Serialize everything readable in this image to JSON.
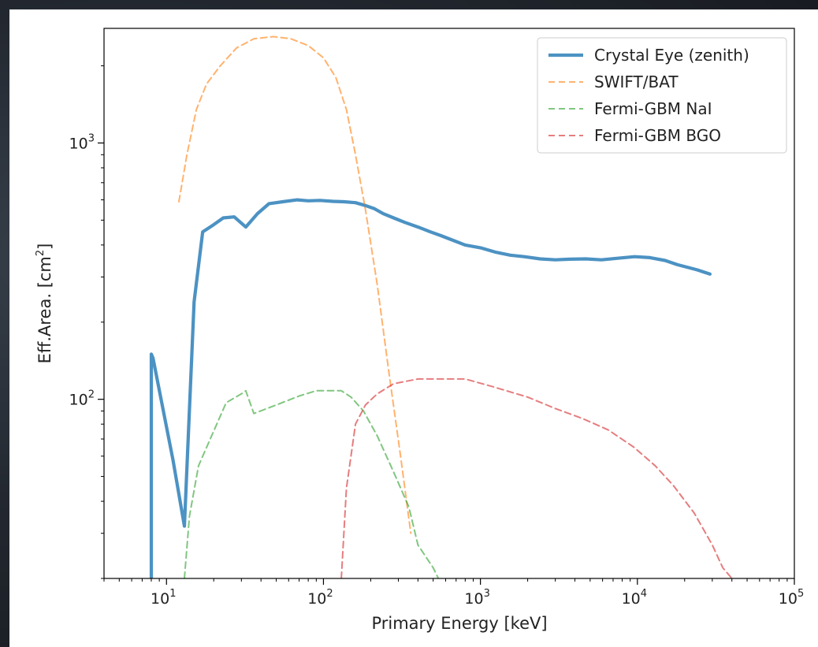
{
  "chart_data": {
    "type": "line",
    "xlabel": "Primary Energy [keV]",
    "ylabel_prefix": "Eff.Area. [cm",
    "ylabel_exp": "2",
    "ylabel_suffix": "]",
    "xscale": "log",
    "yscale": "log",
    "xlim": [
      4,
      100000
    ],
    "ylim": [
      20,
      2800
    ],
    "grid": false,
    "legend_position": "top-right",
    "x_ticks": [
      {
        "base": "10",
        "exp": "1",
        "value": 10
      },
      {
        "base": "10",
        "exp": "2",
        "value": 100
      },
      {
        "base": "10",
        "exp": "3",
        "value": 1000
      },
      {
        "base": "10",
        "exp": "4",
        "value": 10000
      },
      {
        "base": "10",
        "exp": "5",
        "value": 100000
      }
    ],
    "y_ticks": [
      {
        "base": "10",
        "exp": "2",
        "value": 100
      },
      {
        "base": "10",
        "exp": "3",
        "value": 1000
      }
    ],
    "series": [
      {
        "name": "Crystal Eye (zenith)",
        "color": "#1f77b4",
        "style": "solid",
        "x": [
          8,
          8,
          8.2,
          11,
          13,
          15,
          17,
          20,
          23,
          27,
          32,
          38,
          45,
          55,
          68,
          80,
          95,
          115,
          135,
          160,
          185,
          210,
          240,
          280,
          330,
          400,
          480,
          560,
          650,
          800,
          1000,
          1250,
          1550,
          1900,
          2400,
          3000,
          3700,
          4700,
          5900,
          7500,
          9600,
          12000,
          15000,
          18000,
          24000,
          29000
        ],
        "y": [
          20,
          150,
          145,
          58,
          32,
          240,
          450,
          480,
          510,
          515,
          470,
          530,
          580,
          590,
          600,
          595,
          597,
          592,
          590,
          585,
          570,
          555,
          530,
          510,
          490,
          470,
          450,
          435,
          420,
          400,
          390,
          375,
          365,
          360,
          353,
          350,
          352,
          353,
          350,
          355,
          360,
          357,
          348,
          335,
          320,
          308
        ]
      },
      {
        "name": "SWIFT/BAT",
        "color": "#ff7f0e",
        "style": "dashed",
        "x": [
          12,
          13.5,
          15.5,
          18,
          22,
          28,
          36,
          48,
          62,
          80,
          100,
          120,
          140,
          160,
          185,
          220,
          260,
          310,
          360
        ],
        "y": [
          590,
          900,
          1350,
          1700,
          2000,
          2350,
          2550,
          2600,
          2550,
          2400,
          2150,
          1800,
          1350,
          900,
          550,
          280,
          130,
          60,
          30
        ]
      },
      {
        "name": "Fermi-GBM NaI",
        "color": "#2ca02c",
        "style": "dashed",
        "x": [
          13,
          14,
          16,
          19,
          24,
          30,
          32,
          36,
          50,
          70,
          90,
          110,
          130,
          150,
          180,
          220,
          280,
          350,
          400,
          500,
          540
        ],
        "y": [
          20,
          35,
          55,
          70,
          97,
          105,
          108,
          88,
          95,
          103,
          108,
          108,
          108,
          102,
          90,
          72,
          52,
          38,
          27,
          22,
          20
        ]
      },
      {
        "name": "Fermi-GBM BGO",
        "color": "#d62728",
        "style": "dashed",
        "x": [
          130,
          140,
          160,
          185,
          220,
          280,
          400,
          600,
          800,
          1200,
          2000,
          3000,
          4500,
          6500,
          9500,
          13000,
          17000,
          23000,
          30000,
          35000,
          40000
        ],
        "y": [
          20,
          45,
          80,
          95,
          105,
          115,
          120,
          120,
          120,
          112,
          102,
          92,
          84,
          76,
          65,
          55,
          46,
          36,
          27,
          22,
          20
        ]
      }
    ]
  }
}
